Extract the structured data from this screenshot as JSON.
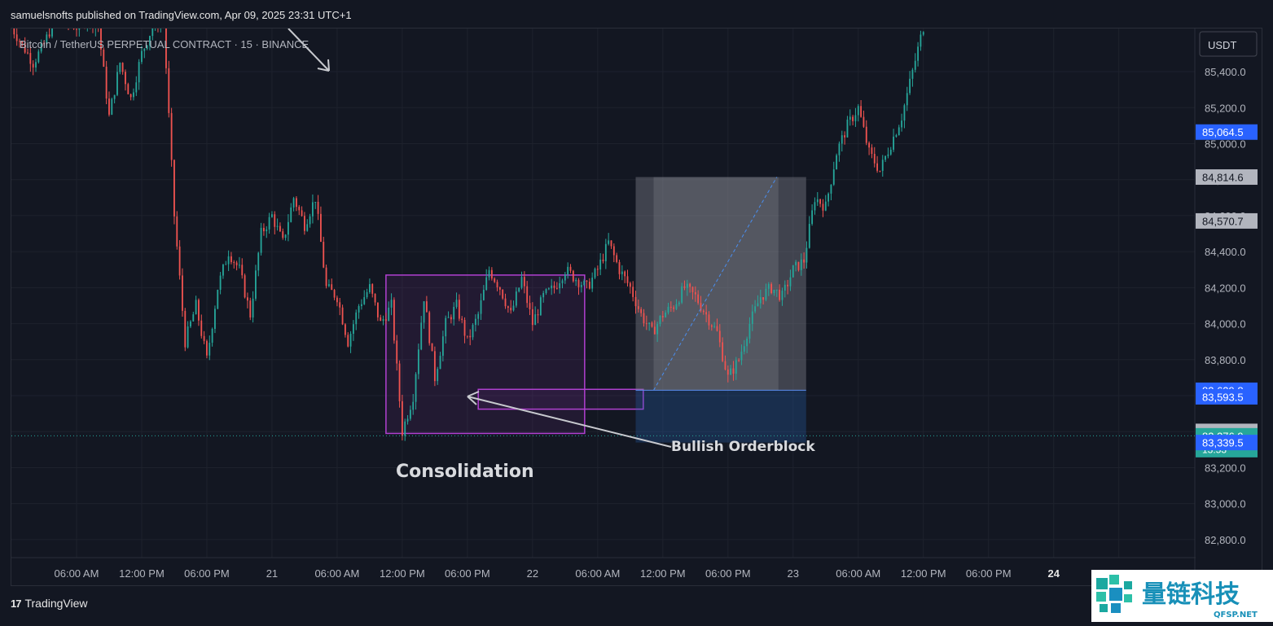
{
  "header": {
    "publisher_line": "samuelsnofts published on TradingView.com, Apr 09, 2025 23:31 UTC+1"
  },
  "footer": {
    "brand": "TradingView",
    "watermark_main": "量链科技",
    "watermark_sub": "QFSP.NET"
  },
  "chart_data": {
    "type": "candlestick",
    "symbol_line": "Bitcoin / TetherUS PERPETUAL CONTRACT · 15 · BINANCE",
    "currency": "USDT",
    "price_ticks": [
      85400,
      85200,
      85000,
      84800,
      84600,
      84400,
      84200,
      84000,
      83800,
      83600,
      83400,
      83200,
      83000,
      82800
    ],
    "price_tick_labels": [
      "85,400.0",
      "85,200.0",
      "85,000.0",
      "84,800.0",
      "84,600.0",
      "84,400.0",
      "84,200.0",
      "84,000.0",
      "83,800.0",
      "83,600.0",
      "83,400.0",
      "83,200.0",
      "83,000.0",
      "82,800.0"
    ],
    "ylim": [
      82700,
      85640
    ],
    "time_labels": [
      "06:00 AM",
      "12:00 PM",
      "06:00 PM",
      "21",
      "06:00 AM",
      "12:00 PM",
      "06:00 PM",
      "22",
      "06:00 AM",
      "12:00 PM",
      "06:00 PM",
      "23",
      "06:00 AM",
      "12:00 PM",
      "06:00 PM",
      "24",
      "06:00 AM"
    ],
    "time_label_hours": [
      6,
      12,
      18,
      24,
      30,
      36,
      42,
      48,
      54,
      60,
      66,
      72,
      78,
      84,
      90,
      96,
      102
    ],
    "xlim_hours": [
      0,
      109
    ],
    "price_path": [
      [
        0,
        85650
      ],
      [
        2,
        85450
      ],
      [
        3,
        85550
      ],
      [
        4,
        85700
      ],
      [
        6,
        85650
      ],
      [
        7,
        85700
      ],
      [
        8,
        85650
      ],
      [
        9,
        85150
      ],
      [
        10,
        85450
      ],
      [
        11,
        85250
      ],
      [
        12,
        85500
      ],
      [
        13,
        85650
      ],
      [
        14,
        85700
      ],
      [
        15,
        84600
      ],
      [
        16,
        83900
      ],
      [
        17,
        84100
      ],
      [
        18,
        83800
      ],
      [
        19,
        84200
      ],
      [
        20,
        84400
      ],
      [
        21,
        84300
      ],
      [
        22,
        84050
      ],
      [
        23,
        84500
      ],
      [
        24,
        84600
      ],
      [
        25,
        84450
      ],
      [
        26,
        84700
      ],
      [
        27,
        84550
      ],
      [
        28,
        84700
      ],
      [
        29,
        84200
      ],
      [
        30,
        84150
      ],
      [
        31,
        83900
      ],
      [
        32,
        84100
      ],
      [
        33,
        84200
      ],
      [
        34,
        84000
      ],
      [
        35,
        84100
      ],
      [
        36,
        83400
      ],
      [
        37,
        83600
      ],
      [
        38,
        84150
      ],
      [
        39,
        83700
      ],
      [
        40,
        84000
      ],
      [
        41,
        84100
      ],
      [
        42,
        83900
      ],
      [
        43,
        84050
      ],
      [
        44,
        84300
      ],
      [
        45,
        84200
      ],
      [
        46,
        84050
      ],
      [
        47,
        84250
      ],
      [
        48,
        84000
      ],
      [
        49,
        84150
      ],
      [
        50,
        84200
      ],
      [
        51,
        84300
      ],
      [
        52,
        84250
      ],
      [
        53,
        84200
      ],
      [
        54,
        84300
      ],
      [
        55,
        84450
      ],
      [
        56,
        84300
      ],
      [
        57,
        84200
      ],
      [
        58,
        84050
      ],
      [
        59,
        83950
      ],
      [
        60,
        84050
      ],
      [
        61,
        84100
      ],
      [
        62,
        84200
      ],
      [
        63,
        84150
      ],
      [
        64,
        84050
      ],
      [
        65,
        83950
      ],
      [
        66,
        83700
      ],
      [
        67,
        83800
      ],
      [
        68,
        84000
      ],
      [
        69,
        84150
      ],
      [
        70,
        84200
      ],
      [
        71,
        84150
      ],
      [
        72,
        84300
      ],
      [
        73,
        84350
      ],
      [
        74,
        84700
      ],
      [
        75,
        84650
      ],
      [
        76,
        84950
      ],
      [
        77,
        85100
      ],
      [
        78,
        85200
      ],
      [
        79,
        84950
      ],
      [
        80,
        84850
      ],
      [
        81,
        85000
      ],
      [
        82,
        85150
      ],
      [
        83,
        85400
      ],
      [
        84,
        85650
      ]
    ],
    "price_labels": [
      {
        "text": "85,064.5",
        "value": 85064.5,
        "style": "blue"
      },
      {
        "text": "84,814.6",
        "value": 84814.6,
        "style": "grey"
      },
      {
        "text": "84,570.7",
        "value": 84570.7,
        "style": "grey"
      },
      {
        "text": "83,629.8",
        "value": 83629.8,
        "style": "blue"
      },
      {
        "text": "83,593.5",
        "value": 83593.5,
        "style": "blue"
      },
      {
        "text": "83,401.4",
        "value": 83401.4,
        "style": "grey"
      },
      {
        "text": "83,376.9",
        "value": 83376.9,
        "style": "green",
        "sub": "13:53"
      },
      {
        "text": "83,339.5",
        "value": 83339.5,
        "style": "blue"
      }
    ],
    "current_price": 83376.9,
    "annotations": [
      {
        "text": "Consolidation",
        "hour": 43,
        "value": 83040
      },
      {
        "text": "Bullish Orderblock",
        "hour": 70,
        "value": 83290
      }
    ],
    "zones": [
      {
        "name": "consolidation-box",
        "x": [
          34.5,
          52.8
        ],
        "y": [
          83390,
          84270
        ]
      },
      {
        "name": "orderblock-box",
        "x": [
          43.0,
          58.2
        ],
        "y": [
          83525,
          83635
        ]
      }
    ],
    "position_tool": {
      "x": [
        57.5,
        73.2
      ],
      "entry": 83629.8,
      "target": 84814.6,
      "stop": 83339.5
    },
    "colors": {
      "up": "#26a69a",
      "down": "#ef5350",
      "box": "#b040d0",
      "target_zone": "#5d606b",
      "stop_zone": "#1f3b63",
      "price_line": "#26a69a"
    }
  }
}
